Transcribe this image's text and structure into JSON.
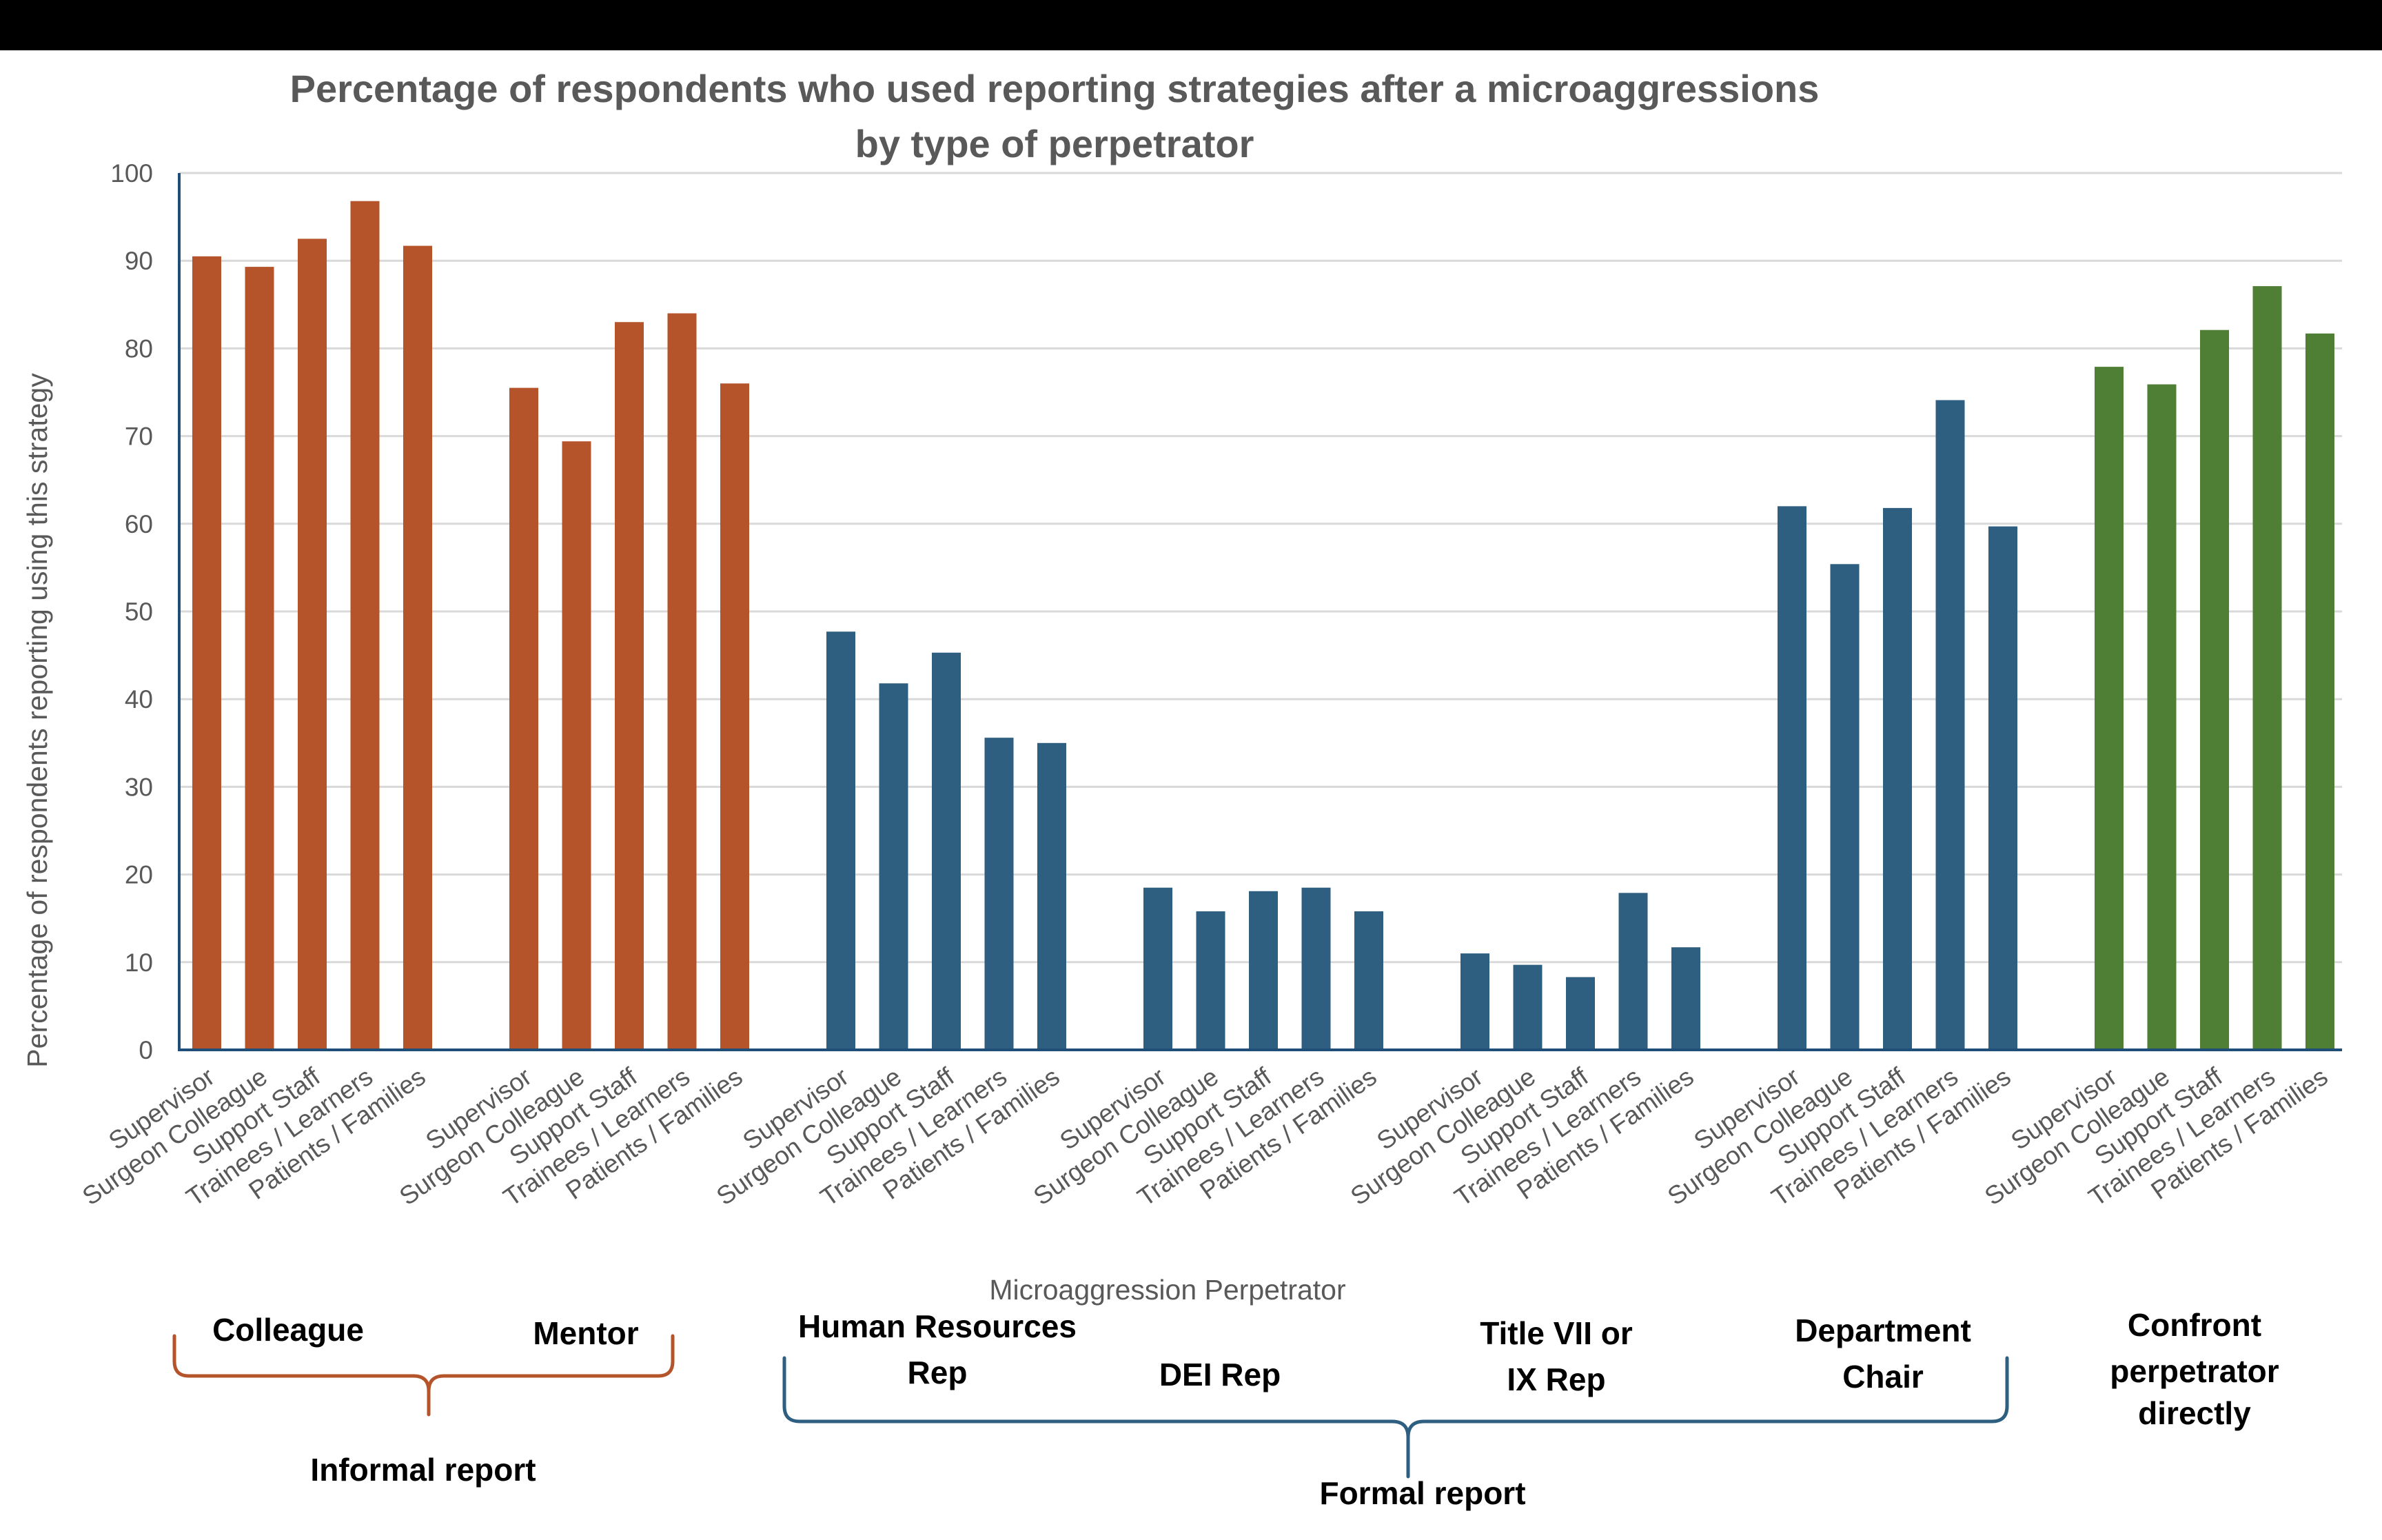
{
  "chart_data": {
    "type": "bar",
    "title": [
      "Percentage of respondents who used reporting strategies after a microaggressions",
      "by type of perpetrator"
    ],
    "xlabel": "Microaggression Perpetrator",
    "ylabel": "Percentage of respondents reporting using this strategy",
    "ylim": [
      0,
      100
    ],
    "yticks": [
      "0",
      "10",
      "20",
      "30",
      "40",
      "50",
      "60",
      "70",
      "80",
      "90",
      "100"
    ],
    "grid": true,
    "legend": "none",
    "categories": [
      "Supervisor",
      "Surgeon Colleague",
      "Support Staff",
      "Trainees / Learners",
      "Patients / Families"
    ],
    "groups": [
      {
        "name": "Colleague",
        "color": "#B5532A",
        "values": [
          90.5,
          89.3,
          92.5,
          96.8,
          91.7
        ]
      },
      {
        "name": "Mentor",
        "color": "#B5532A",
        "values": [
          75.5,
          69.4,
          83.0,
          84.0,
          76.0
        ]
      },
      {
        "name": "Human Resources Rep",
        "color": "#2E5F80",
        "values": [
          47.7,
          41.8,
          45.3,
          35.6,
          35.0
        ]
      },
      {
        "name": "DEI Rep",
        "color": "#2E5F80",
        "values": [
          18.5,
          15.8,
          18.1,
          18.5,
          15.8
        ]
      },
      {
        "name": "Title VII or IX Rep",
        "color": "#2E5F80",
        "values": [
          11.0,
          9.7,
          8.3,
          17.9,
          11.7
        ]
      },
      {
        "name": "Department Chair",
        "color": "#2E5F80",
        "values": [
          62.0,
          55.4,
          61.8,
          74.1,
          59.7
        ]
      },
      {
        "name": "Confront perpetrator directly",
        "color": "#4E7F35",
        "values": [
          77.9,
          75.9,
          82.1,
          87.1,
          81.7
        ]
      }
    ]
  },
  "annotations": {
    "colleague": "Colleague",
    "mentor": "Mentor",
    "hr_line1": "Human Resources",
    "hr_line2": "Rep",
    "dei": "DEI Rep",
    "title7_line1": "Title VII or",
    "title7_line2": "IX Rep",
    "chair_line1": "Department",
    "chair_line2": "Chair",
    "confront_line1": "Confront",
    "confront_line2": "perpetrator",
    "confront_line3": "directly",
    "informal": "Informal report",
    "formal": "Formal report"
  },
  "colors": {
    "informal": "#B5532A",
    "formal": "#2E5F80",
    "confront": "#4E7F35",
    "axis": "#1F4E79",
    "grid": "#D9D9D9",
    "text": "#595959"
  }
}
